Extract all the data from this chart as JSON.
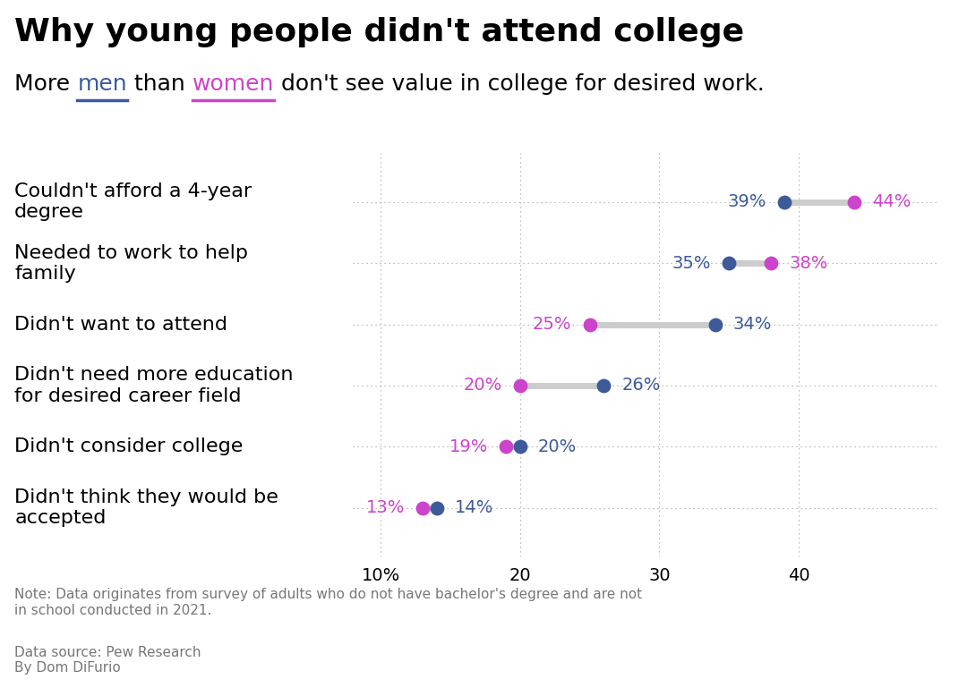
{
  "title": "Why young people didn't attend college",
  "subtitle_parts": [
    "More ",
    "men",
    " than ",
    "women",
    " don't see value in college for desired work."
  ],
  "subtitle_colors": [
    "#000000",
    "#3d5a99",
    "#000000",
    "#cc44cc",
    "#000000"
  ],
  "men_color": "#3d5a99",
  "women_color": "#cc44cc",
  "line_color": "#cccccc",
  "categories": [
    "Couldn't afford a 4-year\ndegree",
    "Needed to work to help\nfamily",
    "Didn't want to attend",
    "Didn't need more education\nfor desired career field",
    "Didn't consider college",
    "Didn't think they would be\naccepted"
  ],
  "men_values": [
    39,
    35,
    34,
    26,
    20,
    14
  ],
  "women_values": [
    44,
    38,
    25,
    20,
    19,
    13
  ],
  "xlim": [
    8,
    50
  ],
  "xticks": [
    10,
    20,
    30,
    40
  ],
  "xticklabels": [
    "10%",
    "20",
    "30",
    "40"
  ],
  "note": "Note: Data originates from survey of adults who do not have bachelor's degree and are not\nin school conducted in 2021.",
  "source": "Data source: Pew Research\nBy Dom DiFurio",
  "background_color": "#ffffff",
  "title_fontsize": 26,
  "subtitle_fontsize": 18,
  "category_fontsize": 16,
  "value_fontsize": 14,
  "axis_fontsize": 14,
  "note_fontsize": 11,
  "dot_size": 130
}
